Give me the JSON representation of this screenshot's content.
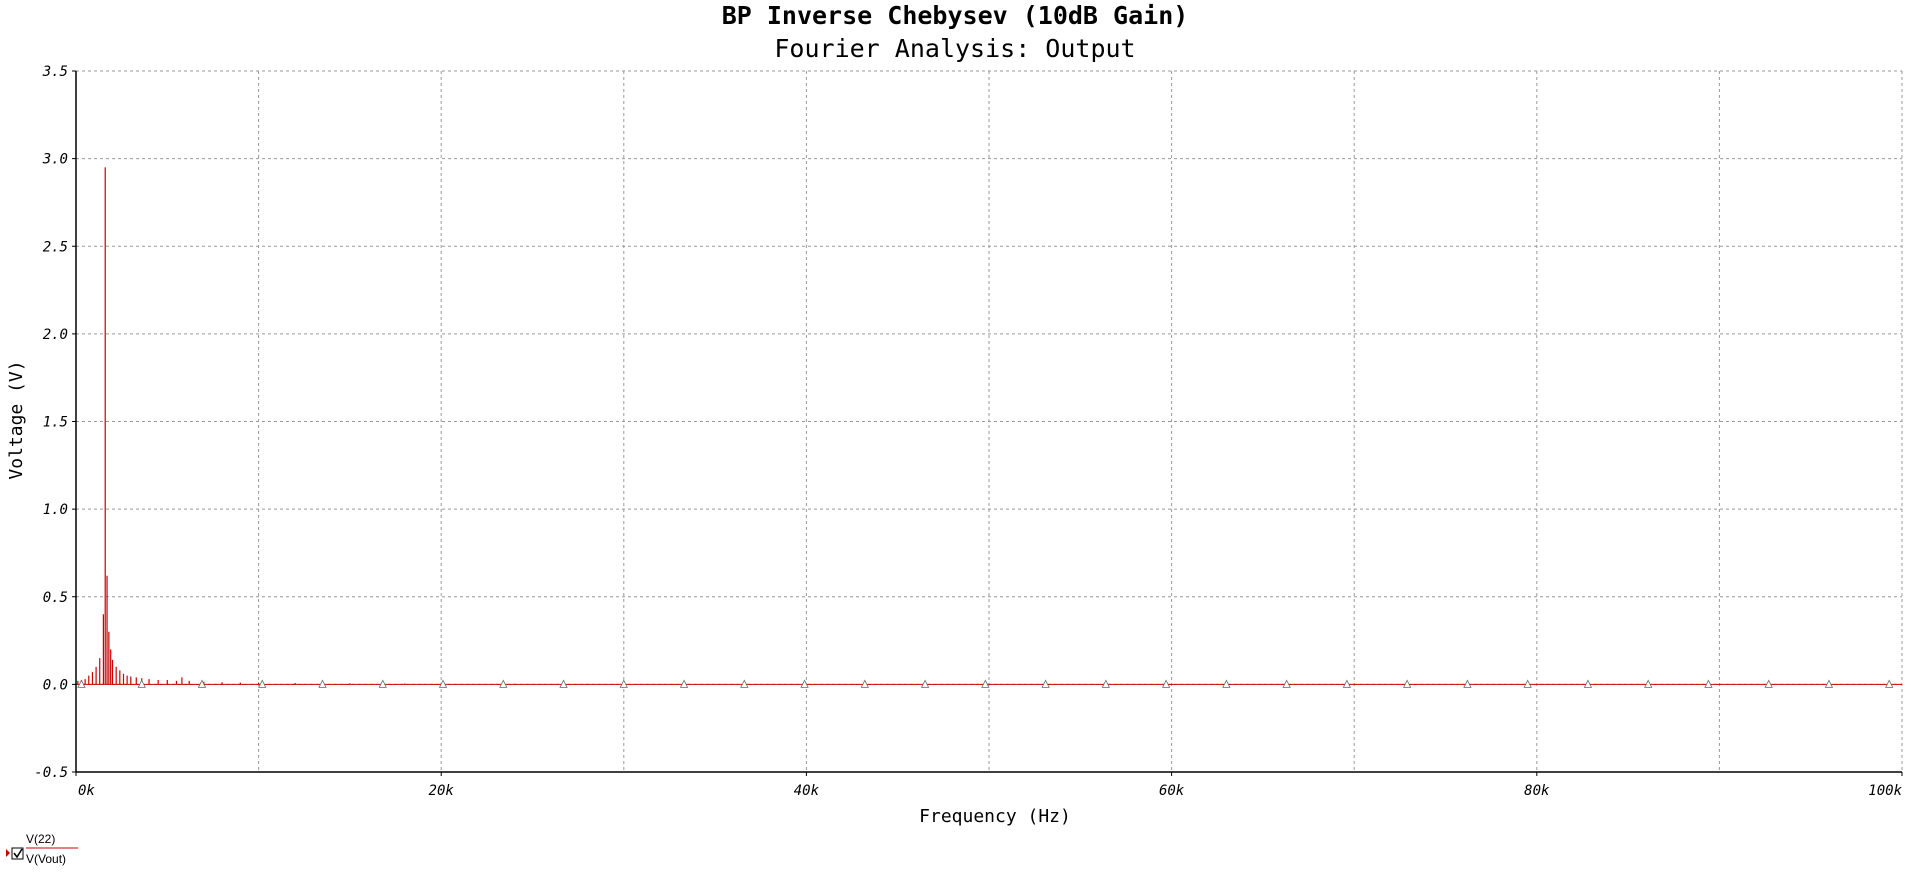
{
  "chart_data": {
    "type": "bar",
    "title": "BP Inverse Chebysev (10dB Gain)",
    "subtitle": "Fourier Analysis: Output",
    "xlabel": "Frequency (Hz)",
    "ylabel": "Voltage (V)",
    "xlim": [
      0,
      100000
    ],
    "ylim": [
      -0.5,
      3.5
    ],
    "x_ticks": [
      {
        "value": 0,
        "label": "0k"
      },
      {
        "value": 20000,
        "label": "20k"
      },
      {
        "value": 40000,
        "label": "40k"
      },
      {
        "value": 60000,
        "label": "60k"
      },
      {
        "value": 80000,
        "label": "80k"
      },
      {
        "value": 100000,
        "label": "100k"
      }
    ],
    "y_ticks": [
      {
        "value": -0.5,
        "label": "-0.5"
      },
      {
        "value": 0.0,
        "label": "0.0"
      },
      {
        "value": 0.5,
        "label": "0.5"
      },
      {
        "value": 1.0,
        "label": "1.0"
      },
      {
        "value": 1.5,
        "label": "1.5"
      },
      {
        "value": 2.0,
        "label": "2.0"
      },
      {
        "value": 2.5,
        "label": "2.5"
      },
      {
        "value": 3.0,
        "label": "3.0"
      },
      {
        "value": 3.5,
        "label": "3.5"
      }
    ],
    "x_grid": [
      0,
      10000,
      20000,
      30000,
      40000,
      50000,
      60000,
      70000,
      80000,
      90000,
      100000
    ],
    "grid": true,
    "legend_position": "bottom-left",
    "series": [
      {
        "name": "V(22)",
        "color": "#cc0000",
        "points": [
          [
            100,
            0.02
          ],
          [
            300,
            0.025
          ],
          [
            500,
            0.03
          ],
          [
            700,
            0.05
          ],
          [
            900,
            0.07
          ],
          [
            1100,
            0.1
          ],
          [
            1300,
            0.15
          ],
          [
            1500,
            0.4
          ],
          [
            1600,
            2.95
          ],
          [
            1700,
            0.62
          ],
          [
            1800,
            0.3
          ],
          [
            1900,
            0.2
          ],
          [
            2000,
            0.14
          ],
          [
            2200,
            0.1
          ],
          [
            2400,
            0.08
          ],
          [
            2600,
            0.06
          ],
          [
            2800,
            0.05
          ],
          [
            3000,
            0.045
          ],
          [
            3300,
            0.04
          ],
          [
            3600,
            0.035
          ],
          [
            4000,
            0.03
          ],
          [
            4500,
            0.025
          ],
          [
            5000,
            0.025
          ],
          [
            5500,
            0.02
          ],
          [
            5800,
            0.04
          ],
          [
            6200,
            0.02
          ],
          [
            7000,
            0.015
          ],
          [
            8000,
            0.012
          ],
          [
            9000,
            0.01
          ],
          [
            10000,
            0.01
          ],
          [
            12000,
            0.008
          ],
          [
            15000,
            0.006
          ],
          [
            18000,
            0.005
          ],
          [
            20000,
            0.005
          ],
          [
            24000,
            0.004
          ],
          [
            28000,
            0.003
          ]
        ]
      },
      {
        "name": "V(Vout)",
        "color": "#cc0000",
        "marker": "triangle",
        "markers_x": [
          300,
          3600,
          6900,
          10200,
          13500,
          16800,
          20100,
          23400,
          26700,
          30000,
          33300,
          36600,
          39900,
          43200,
          46500,
          49800,
          53100,
          56400,
          59700,
          63000,
          66300,
          69600,
          72900,
          76200,
          79500,
          82800,
          86100,
          89400,
          92700,
          96000,
          99300
        ],
        "value": 0.0
      }
    ],
    "colors": {
      "series": "#cc0000",
      "grid": "#999999",
      "axis": "#000000"
    }
  },
  "legend": {
    "item1": "V(22)",
    "item2": "V(Vout)"
  }
}
